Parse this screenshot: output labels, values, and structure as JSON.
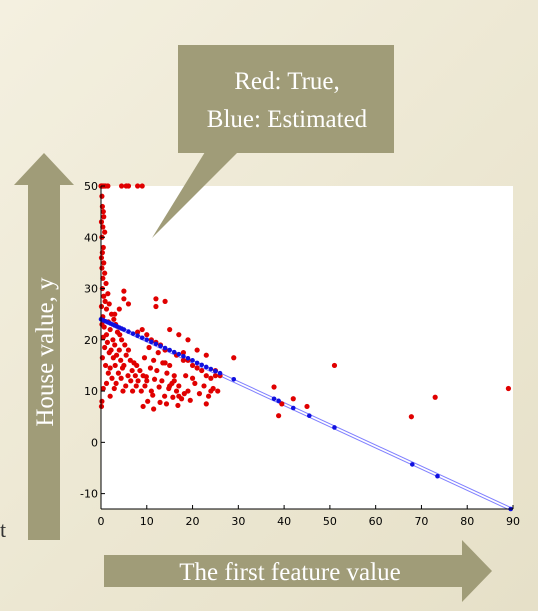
{
  "callout": {
    "line1": "Red: True,",
    "line2": "Blue: Estimated"
  },
  "y_arrow_label": "House value, y",
  "x_arrow_label": "The first feature value",
  "edge_fragment": "t",
  "colors": {
    "true_points": "#e00000",
    "estimated_points": "#1010e0",
    "fit_line": "#8080ff",
    "arrow_fill": "#a09c78",
    "callout_fill": "#a09c78"
  },
  "chart_data": {
    "type": "scatter",
    "title": "",
    "xlabel": "",
    "ylabel": "",
    "xlim": [
      0,
      90
    ],
    "ylim": [
      -13,
      50
    ],
    "xticks": [
      "0",
      "10",
      "20",
      "30",
      "40",
      "50",
      "60",
      "70",
      "80",
      "90"
    ],
    "yticks": [
      "-10",
      "0",
      "10",
      "20",
      "30",
      "40",
      "50"
    ],
    "grid": false,
    "series": [
      {
        "name": "True",
        "color": "#e00000",
        "points": [
          [
            0,
            50
          ],
          [
            0.1,
            50
          ],
          [
            0.2,
            50
          ],
          [
            0.3,
            50
          ],
          [
            0.5,
            50
          ],
          [
            0.7,
            50
          ],
          [
            1,
            50
          ],
          [
            1.5,
            50
          ],
          [
            4.5,
            50
          ],
          [
            5.5,
            50
          ],
          [
            6,
            50
          ],
          [
            8,
            50
          ],
          [
            9,
            50
          ],
          [
            0.2,
            48
          ],
          [
            0.3,
            46
          ],
          [
            0.5,
            45
          ],
          [
            0.6,
            44
          ],
          [
            0.1,
            43
          ],
          [
            0.4,
            42
          ],
          [
            0.8,
            41
          ],
          [
            0.2,
            40
          ],
          [
            0.5,
            38
          ],
          [
            0.3,
            37
          ],
          [
            0.1,
            36
          ],
          [
            0.6,
            35
          ],
          [
            0.2,
            34
          ],
          [
            0.8,
            33
          ],
          [
            0.4,
            32
          ],
          [
            1.1,
            31
          ],
          [
            0.3,
            30
          ],
          [
            1.5,
            29
          ],
          [
            0.6,
            28.5
          ],
          [
            0.9,
            27.5
          ],
          [
            1.8,
            27
          ],
          [
            0.1,
            26.5
          ],
          [
            1.2,
            26
          ],
          [
            2.3,
            25
          ],
          [
            0.4,
            24.5
          ],
          [
            2.8,
            24
          ],
          [
            1.6,
            23.5
          ],
          [
            0.2,
            23
          ],
          [
            3.2,
            23
          ],
          [
            0.7,
            22.5
          ],
          [
            2,
            22
          ],
          [
            3.6,
            21.5
          ],
          [
            1.2,
            21
          ],
          [
            4.1,
            21
          ],
          [
            0.5,
            20.5
          ],
          [
            2.6,
            20
          ],
          [
            4.5,
            20
          ],
          [
            1.4,
            19.5
          ],
          [
            3,
            19
          ],
          [
            5.2,
            19
          ],
          [
            0.8,
            18.5
          ],
          [
            2.2,
            18
          ],
          [
            4,
            18
          ],
          [
            6,
            18
          ],
          [
            1.8,
            17.5
          ],
          [
            3.4,
            17
          ],
          [
            5.5,
            17
          ],
          [
            0.3,
            16.5
          ],
          [
            2.7,
            16.5
          ],
          [
            4.3,
            16
          ],
          [
            6.4,
            16
          ],
          [
            7.2,
            15.5
          ],
          [
            1,
            15
          ],
          [
            3.1,
            15
          ],
          [
            5,
            15
          ],
          [
            7.8,
            15
          ],
          [
            2,
            14.5
          ],
          [
            4.7,
            14.5
          ],
          [
            6.8,
            14
          ],
          [
            8.5,
            14
          ],
          [
            1.6,
            13.5
          ],
          [
            3.8,
            13.5
          ],
          [
            5.9,
            13
          ],
          [
            7.5,
            13
          ],
          [
            9.2,
            13
          ],
          [
            2.4,
            12.5
          ],
          [
            4.4,
            12.5
          ],
          [
            6.5,
            12
          ],
          [
            8.1,
            12
          ],
          [
            10,
            12
          ],
          [
            1.2,
            11.5
          ],
          [
            3.3,
            11.5
          ],
          [
            5.4,
            11
          ],
          [
            7.7,
            11
          ],
          [
            9.6,
            11
          ],
          [
            0.5,
            10.5
          ],
          [
            2.9,
            10.5
          ],
          [
            4.8,
            10
          ],
          [
            6.9,
            10
          ],
          [
            8.8,
            10
          ],
          [
            11,
            10
          ],
          [
            0.2,
            8
          ],
          [
            0.1,
            7
          ],
          [
            2,
            9
          ],
          [
            5,
            29.5
          ],
          [
            4,
            26
          ],
          [
            5,
            28
          ],
          [
            6,
            27
          ],
          [
            3,
            25
          ],
          [
            9,
            22
          ],
          [
            8,
            21.5
          ],
          [
            10,
            21
          ],
          [
            11,
            20
          ],
          [
            12,
            19.5
          ],
          [
            13,
            19
          ],
          [
            14,
            18
          ],
          [
            10.5,
            18.5
          ],
          [
            12.5,
            17.5
          ],
          [
            9.5,
            16.5
          ],
          [
            11.5,
            16
          ],
          [
            13.5,
            15.5
          ],
          [
            15,
            15
          ],
          [
            10.8,
            14.5
          ],
          [
            12.2,
            14
          ],
          [
            14.4,
            13.5
          ],
          [
            16,
            13
          ],
          [
            9.9,
            12.8
          ],
          [
            11.7,
            12.3
          ],
          [
            13.3,
            12
          ],
          [
            15.5,
            11.5
          ],
          [
            17,
            11
          ],
          [
            12.7,
            10.8
          ],
          [
            14.8,
            10.5
          ],
          [
            16.5,
            10
          ],
          [
            18.2,
            9.5
          ],
          [
            11.3,
            9.2
          ],
          [
            13.9,
            9
          ],
          [
            15.7,
            8.8
          ],
          [
            17.6,
            8.5
          ],
          [
            19.5,
            8.2
          ],
          [
            10.2,
            8
          ],
          [
            12.9,
            7.8
          ],
          [
            14.3,
            7.5
          ],
          [
            16.8,
            7.2
          ],
          [
            9.2,
            7
          ],
          [
            11.5,
            6.5
          ],
          [
            18,
            17.5
          ],
          [
            19,
            16
          ],
          [
            20,
            15
          ],
          [
            21,
            14.5
          ],
          [
            22,
            14
          ],
          [
            23,
            13
          ],
          [
            24,
            12.5
          ],
          [
            25,
            13
          ],
          [
            20.5,
            11.5
          ],
          [
            22.5,
            11
          ],
          [
            24.5,
            10.5
          ],
          [
            21.5,
            9.5
          ],
          [
            23.5,
            9
          ],
          [
            25.5,
            10
          ],
          [
            19,
            10
          ],
          [
            17,
            9
          ],
          [
            15,
            11
          ],
          [
            16,
            12
          ],
          [
            18.5,
            13
          ],
          [
            20,
            12.5
          ],
          [
            14,
            15.5
          ],
          [
            16.5,
            17
          ],
          [
            18,
            16
          ],
          [
            12,
            26.5
          ],
          [
            12,
            28
          ],
          [
            14,
            27.5
          ],
          [
            15,
            22
          ],
          [
            17,
            21
          ],
          [
            19,
            20
          ],
          [
            21,
            18
          ],
          [
            23,
            17
          ],
          [
            25,
            14
          ],
          [
            26,
            13
          ],
          [
            24,
            10
          ],
          [
            23,
            7.5
          ],
          [
            29,
            16.5
          ],
          [
            37.8,
            10.8
          ],
          [
            38.8,
            5.2
          ],
          [
            39.5,
            7.5
          ],
          [
            42,
            8.5
          ],
          [
            45,
            7
          ],
          [
            51,
            15
          ],
          [
            67.8,
            5
          ],
          [
            73,
            8.8
          ],
          [
            89,
            10.5
          ]
        ]
      },
      {
        "name": "Estimated",
        "color": "#1010e0",
        "points": [
          [
            0,
            24
          ],
          [
            0.5,
            23.8
          ],
          [
            1,
            23.6
          ],
          [
            1.5,
            23.4
          ],
          [
            2,
            23.2
          ],
          [
            2.5,
            23
          ],
          [
            3,
            22.8
          ],
          [
            3.5,
            22.6
          ],
          [
            4,
            22.4
          ],
          [
            4.5,
            22.2
          ],
          [
            5,
            22
          ],
          [
            6,
            21.6
          ],
          [
            7,
            21.2
          ],
          [
            8,
            20.8
          ],
          [
            9,
            20.4
          ],
          [
            10,
            20
          ],
          [
            11,
            19.6
          ],
          [
            12,
            19.2
          ],
          [
            13,
            18.8
          ],
          [
            14,
            18.4
          ],
          [
            15,
            18
          ],
          [
            16,
            17.6
          ],
          [
            17,
            17.2
          ],
          [
            18,
            16.8
          ],
          [
            19,
            16.4
          ],
          [
            20,
            16
          ],
          [
            21,
            15.5
          ],
          [
            22,
            15.1
          ],
          [
            23,
            14.7
          ],
          [
            24,
            14.3
          ],
          [
            25,
            13.9
          ],
          [
            26,
            13.5
          ],
          [
            29,
            12.3
          ],
          [
            37.8,
            8.5
          ],
          [
            38.8,
            8.1
          ],
          [
            42,
            6.7
          ],
          [
            45.5,
            5.2
          ],
          [
            51,
            2.9
          ],
          [
            68,
            -4.3
          ],
          [
            73.5,
            -6.6
          ],
          [
            89.5,
            -13
          ]
        ]
      }
    ],
    "fit_line": {
      "x": [
        0,
        89.5
      ],
      "y": [
        24,
        -13
      ]
    }
  }
}
